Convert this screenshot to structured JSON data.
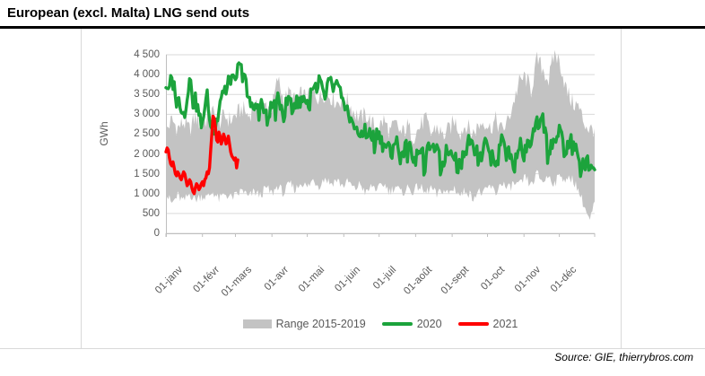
{
  "title": "European (excl. Malta) LNG send outs",
  "source": "Source: GIE, thierrybros.com",
  "colors": {
    "band": "#C3C3C3",
    "line_2020": "#1CA33C",
    "line_2021": "#FF0000",
    "gridline": "#D9D9D9",
    "axis_line": "#BFBFBF",
    "axis_text": "#595959",
    "title_text": "#000000"
  },
  "legend": {
    "range": {
      "label": "Range 2015-2019"
    },
    "y2020": {
      "label": "2020"
    },
    "y2021": {
      "label": "2021"
    }
  },
  "y_axis": {
    "title": "GWh",
    "tick_labels": [
      "0",
      "500",
      "1 000",
      "1 500",
      "2 000",
      "2 500",
      "3 000",
      "3 500",
      "4 000",
      "4 500"
    ]
  },
  "x_axis": {
    "tick_labels": [
      "01-janv",
      "01-févr",
      "01-mars",
      "01-avr",
      "01-mai",
      "01-juin",
      "01-juil",
      "01-août",
      "01-sept",
      "01-oct",
      "01-nov",
      "01-déc"
    ]
  },
  "chart_data": {
    "type": "area+line",
    "title": "European (excl. Malta) LNG send outs",
    "ylabel": "GWh",
    "ylim": [
      0,
      4500
    ],
    "y_step": 500,
    "x_unit": "day_of_year",
    "grid": true,
    "legend_position": "bottom",
    "series": [
      {
        "name": "Range 2015-2019",
        "role": "band",
        "days": [
          1,
          6,
          11,
          16,
          21,
          26,
          31,
          36,
          41,
          46,
          51,
          56,
          61,
          66,
          71,
          76,
          81,
          86,
          91,
          96,
          101,
          106,
          111,
          116,
          121,
          126,
          131,
          136,
          141,
          146,
          151,
          156,
          161,
          166,
          171,
          176,
          181,
          186,
          191,
          196,
          201,
          206,
          211,
          216,
          221,
          226,
          231,
          236,
          241,
          246,
          251,
          256,
          261,
          266,
          271,
          276,
          281,
          286,
          291,
          296,
          301,
          306,
          311,
          316,
          321,
          326,
          331,
          336,
          341,
          346,
          351,
          356,
          361,
          365
        ],
        "upper": [
          2600,
          2850,
          2650,
          2800,
          2600,
          2950,
          2700,
          2900,
          3050,
          2800,
          2950,
          2850,
          3000,
          3150,
          2950,
          3200,
          3050,
          3250,
          3150,
          3900,
          3350,
          3550,
          3300,
          3500,
          3400,
          3600,
          3400,
          3550,
          3450,
          3300,
          3400,
          3300,
          3050,
          2900,
          3000,
          2750,
          2650,
          2850,
          2550,
          2750,
          2500,
          2700,
          2450,
          2650,
          2900,
          2500,
          2700,
          2450,
          2600,
          2850,
          2550,
          2750,
          2500,
          2700,
          2850,
          2650,
          2850,
          2600,
          2800,
          3300,
          3800,
          3950,
          3600,
          4370,
          4150,
          3850,
          4560,
          4250,
          3600,
          3300,
          3200,
          2800,
          2600,
          2650
        ],
        "lower": [
          1000,
          750,
          950,
          800,
          1000,
          850,
          950,
          900,
          1050,
          850,
          1000,
          900,
          950,
          1100,
          900,
          1050,
          950,
          1150,
          1000,
          1200,
          1000,
          1250,
          1100,
          1300,
          1150,
          1350,
          1200,
          1400,
          1250,
          1350,
          1200,
          1300,
          1100,
          1250,
          1000,
          1200,
          1100,
          1250,
          1050,
          1200,
          1000,
          1150,
          1050,
          1200,
          1000,
          1150,
          950,
          1100,
          1000,
          1150,
          950,
          1100,
          900,
          1050,
          1000,
          1200,
          1000,
          1300,
          1100,
          1250,
          1200,
          1400,
          1200,
          1500,
          1300,
          1450,
          1250,
          1500,
          1300,
          1400,
          1100,
          700,
          300,
          800
        ],
        "daily_jitter_upper": 240,
        "daily_jitter_lower": 130
      },
      {
        "name": "2020",
        "role": "line",
        "days": [
          1,
          6,
          11,
          16,
          21,
          26,
          31,
          36,
          41,
          46,
          51,
          56,
          61,
          66,
          71,
          76,
          81,
          86,
          91,
          96,
          101,
          106,
          111,
          116,
          121,
          126,
          131,
          136,
          141,
          146,
          151,
          156,
          161,
          166,
          171,
          176,
          181,
          186,
          191,
          196,
          201,
          206,
          211,
          216,
          221,
          226,
          231,
          236,
          241,
          246,
          251,
          256,
          261,
          266,
          271,
          276,
          281,
          286,
          291,
          296,
          301,
          306,
          311,
          316,
          321,
          326,
          331,
          336,
          341,
          346,
          351,
          356,
          361,
          365
        ],
        "values": [
          3700,
          3850,
          3450,
          3050,
          3850,
          3350,
          2800,
          3450,
          2500,
          3300,
          3700,
          3900,
          4100,
          4150,
          3500,
          3100,
          3350,
          2950,
          3200,
          3350,
          3150,
          3400,
          3250,
          3500,
          3300,
          3600,
          3800,
          3550,
          3850,
          3700,
          3450,
          3050,
          2750,
          2500,
          2650,
          2400,
          2550,
          2300,
          2100,
          2350,
          2000,
          2250,
          1950,
          2200,
          1800,
          2350,
          2050,
          1750,
          2250,
          2000,
          1700,
          2250,
          2500,
          1900,
          2350,
          2100,
          1800,
          2450,
          2150,
          1750,
          2300,
          2050,
          2400,
          2750,
          2880,
          2050,
          2500,
          2550,
          2100,
          2400,
          1900,
          1700,
          1850,
          1600
        ],
        "daily_jitter": 190,
        "weekly_dip": 270
      },
      {
        "name": "2021",
        "role": "line",
        "start_day": 1,
        "daily_values": [
          2050,
          2150,
          2100,
          1900,
          1750,
          1700,
          1800,
          1650,
          1500,
          1450,
          1550,
          1500,
          1400,
          1350,
          1450,
          1550,
          1500,
          1350,
          1200,
          1250,
          1350,
          1300,
          1150,
          1050,
          1000,
          1150,
          1250,
          1200,
          1100,
          1150,
          1250,
          1300,
          1200,
          1350,
          1400,
          1550,
          1500,
          1650,
          2100,
          2500,
          2950,
          2900,
          2650,
          2350,
          2300,
          2550,
          2450,
          2250,
          2350,
          2500,
          2400,
          2250,
          2300,
          2450,
          2250,
          2050,
          1950,
          1900,
          1850,
          1900,
          1650,
          1850
        ]
      }
    ]
  }
}
